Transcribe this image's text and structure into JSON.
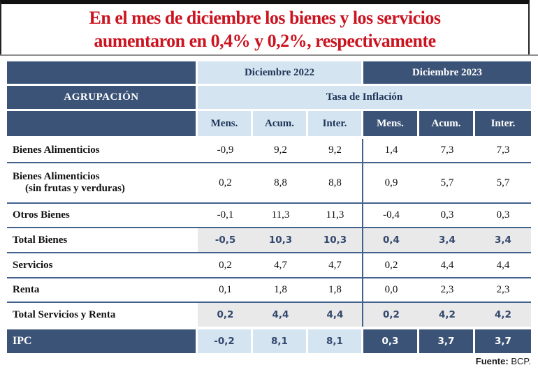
{
  "title": {
    "line1": "En el mes de diciembre los bienes y los servicios",
    "line2": "aumentaron en 0,4% y 0,2%, respectivamente"
  },
  "header": {
    "group_label": "AGRUPACIÓN",
    "period_2022": "Diciembre 2022",
    "period_2023": "Diciembre 2023",
    "measure_label": "Tasa de Inflación",
    "sub_columns": [
      "Mens.",
      "Acum.",
      "Inter."
    ]
  },
  "rows": [
    {
      "label": "Bienes Alimenticios",
      "values": [
        "-0,9",
        "9,2",
        "9,2",
        "1,4",
        "7,3",
        "7,3"
      ]
    },
    {
      "label": "Bienes Alimenticios",
      "label2": "(sin frutas y verduras)",
      "values": [
        "0,2",
        "8,8",
        "8,8",
        "0,9",
        "5,7",
        "5,7"
      ]
    },
    {
      "label": "Otros Bienes",
      "values": [
        "-0,1",
        "11,3",
        "11,3",
        "-0,4",
        "0,3",
        "0,3"
      ]
    },
    {
      "label": "Total Bienes",
      "values": [
        "-0,5",
        "10,3",
        "10,3",
        "0,4",
        "3,4",
        "3,4"
      ]
    },
    {
      "label": "Servicios",
      "values": [
        "0,2",
        "4,7",
        "4,7",
        "0,2",
        "4,4",
        "4,4"
      ]
    },
    {
      "label": "Renta",
      "values": [
        "0,1",
        "1,8",
        "1,8",
        "0,0",
        "2,3",
        "2,3"
      ]
    },
    {
      "label": "Total Servicios y Renta",
      "values": [
        "0,2",
        "4,4",
        "4,4",
        "0,2",
        "4,2",
        "4,2"
      ]
    },
    {
      "label": "IPC",
      "values": [
        "-0,2",
        "8,1",
        "8,1",
        "0,3",
        "3,7",
        "3,7"
      ]
    }
  ],
  "footer": {
    "source_label": "Fuente:",
    "source_value": "BCP."
  },
  "colors": {
    "dark_blue": "#3b5377",
    "light_blue": "#d5e4f1",
    "total_gray": "#e9e9e9",
    "title_red": "#cb1420",
    "separator": "#44618e",
    "top_bar": "#111111"
  },
  "chart_data": {
    "type": "table",
    "title": "En el mes de diciembre los bienes y los servicios aumentaron en 0,4% y 0,2%, respectivamente",
    "column_groups": [
      "Diciembre 2022",
      "Diciembre 2023"
    ],
    "measure": "Tasa de Inflación",
    "columns": [
      "AGRUPACIÓN",
      "Dic2022 Mens.",
      "Dic2022 Acum.",
      "Dic2022 Inter.",
      "Dic2023 Mens.",
      "Dic2023 Acum.",
      "Dic2023 Inter."
    ],
    "rows": [
      [
        "Bienes Alimenticios",
        -0.9,
        9.2,
        9.2,
        1.4,
        7.3,
        7.3
      ],
      [
        "Bienes Alimenticios (sin frutas y verduras)",
        0.2,
        8.8,
        8.8,
        0.9,
        5.7,
        5.7
      ],
      [
        "Otros Bienes",
        -0.1,
        11.3,
        11.3,
        -0.4,
        0.3,
        0.3
      ],
      [
        "Total Bienes",
        -0.5,
        10.3,
        10.3,
        0.4,
        3.4,
        3.4
      ],
      [
        "Servicios",
        0.2,
        4.7,
        4.7,
        0.2,
        4.4,
        4.4
      ],
      [
        "Renta",
        0.1,
        1.8,
        1.8,
        0.0,
        2.3,
        2.3
      ],
      [
        "Total Servicios y Renta",
        0.2,
        4.4,
        4.4,
        0.2,
        4.2,
        4.2
      ],
      [
        "IPC",
        -0.2,
        8.1,
        8.1,
        0.3,
        3.7,
        3.7
      ]
    ],
    "source": "Fuente: BCP."
  }
}
